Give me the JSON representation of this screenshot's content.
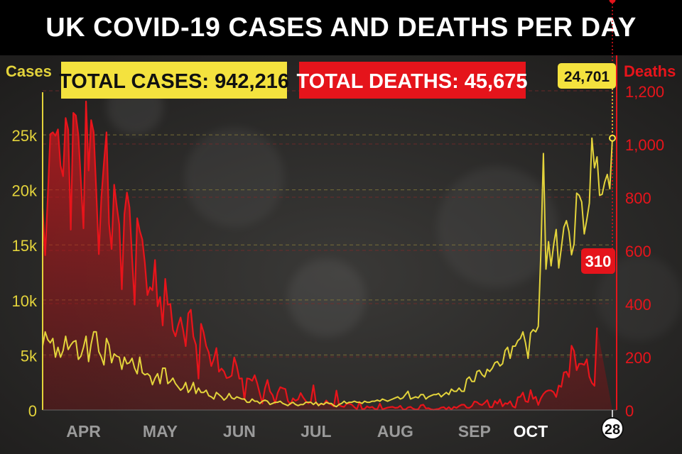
{
  "chart_data": {
    "type": "line",
    "title": "UK COVID-19 CASES AND DEATHS PER DAY",
    "left_axis_label": "Cases",
    "right_axis_label": "Deaths",
    "total_cases_label": "TOTAL CASES: 942,216",
    "total_deaths_label": "TOTAL DEATHS: 45,675",
    "cases_last_label": "24,701",
    "deaths_last_label": "310",
    "end_day_label": "28",
    "left_ticks": [
      {
        "value": 0,
        "label": "0"
      },
      {
        "value": 5000,
        "label": "5k"
      },
      {
        "value": 10000,
        "label": "10k"
      },
      {
        "value": 15000,
        "label": "15k"
      },
      {
        "value": 20000,
        "label": "20k"
      },
      {
        "value": 25000,
        "label": "25k"
      }
    ],
    "right_ticks": [
      {
        "value": 0,
        "label": "0"
      },
      {
        "value": 200,
        "label": "200"
      },
      {
        "value": 400,
        "label": "400"
      },
      {
        "value": 600,
        "label": "600"
      },
      {
        "value": 800,
        "label": "800"
      },
      {
        "value": 1000,
        "label": "1,000"
      },
      {
        "value": 1200,
        "label": "1,200"
      }
    ],
    "left_ylim": [
      0,
      29000
    ],
    "right_ylim": [
      0,
      1200
    ],
    "x_labels": [
      {
        "day": 16,
        "label": "APR"
      },
      {
        "day": 46,
        "label": "MAY"
      },
      {
        "day": 77,
        "label": "JUN"
      },
      {
        "day": 107,
        "label": "JUL"
      },
      {
        "day": 138,
        "label": "AUG"
      },
      {
        "day": 169,
        "label": "SEP"
      },
      {
        "day": 191,
        "label": "OCT",
        "highlight": true
      }
    ],
    "series": [
      {
        "name": "Cases",
        "color": "#e3d33b",
        "values": [
          5800,
          7100,
          6400,
          6100,
          6500,
          4800,
          5700,
          4800,
          5400,
          6700,
          5500,
          5900,
          6200,
          6300,
          4600,
          4900,
          5700,
          6700,
          4400,
          6000,
          7100,
          7100,
          5300,
          4800,
          4100,
          6500,
          5900,
          4300,
          5100,
          4900,
          4800,
          3700,
          4800,
          4200,
          4300,
          4700,
          3800,
          3300,
          4800,
          3400,
          3200,
          3300,
          3100,
          2300,
          2900,
          3300,
          2400,
          3800,
          3800,
          2400,
          2600,
          2900,
          2400,
          2100,
          1800,
          2000,
          2500,
          1600,
          1900,
          2500,
          1500,
          2000,
          1600,
          1600,
          1800,
          1300,
          1200,
          1000,
          1600,
          1400,
          1200,
          900,
          1100,
          1500,
          1100,
          1000,
          1200,
          1100,
          1000,
          1000,
          700,
          700,
          1000,
          800,
          800,
          600,
          800,
          900,
          800,
          500,
          600,
          700,
          700,
          800,
          600,
          500,
          400,
          600,
          700,
          500,
          400,
          500,
          500,
          700,
          700,
          700,
          500,
          700,
          400,
          600,
          500,
          700,
          600,
          600,
          400,
          300,
          500,
          600,
          800,
          600,
          700,
          700,
          800,
          700,
          700,
          600,
          800,
          700,
          700,
          800,
          800,
          900,
          800,
          1000,
          900,
          800,
          900,
          1000,
          1100,
          1200,
          1000,
          1100,
          1400,
          1700,
          1000,
          1100,
          1200,
          1100,
          1400,
          1400,
          1000,
          1200,
          1300,
          1400,
          1400,
          1500,
          1200,
          1400,
          1600,
          1400,
          1900,
          1700,
          1700,
          2000,
          1700,
          1700,
          2800,
          3000,
          2600,
          2600,
          3500,
          3600,
          3200,
          3000,
          3700,
          3500,
          3800,
          4300,
          4400,
          4000,
          4200,
          5400,
          5700,
          4700,
          5800,
          5800,
          6300,
          6500,
          7100,
          6100,
          4700,
          7000,
          7300,
          7100,
          7600,
          14200,
          23300,
          12800,
          15300,
          13100,
          15000,
          16400,
          12900,
          14700,
          16600,
          17200,
          16200,
          14100,
          15100,
          19700,
          19500,
          18900,
          16000,
          17300,
          18800,
          24700,
          22000,
          23000,
          19500,
          19600,
          20700,
          21400,
          20100,
          24701
        ]
      },
      {
        "name": "Deaths",
        "color": "#e8141b",
        "values": [
          757,
          582,
          797,
          1037,
          1044,
          1031,
          1055,
          919,
          879,
          1098,
          1054,
          678,
          1117,
          1107,
          1034,
          861,
          683,
          1160,
          900,
          1090,
          1044,
          823,
          586,
          800,
          930,
          1044,
          701,
          605,
          847,
          767,
          698,
          454,
          737,
          818,
          761,
          573,
          396,
          721,
          674,
          641,
          553,
          432,
          462,
          450,
          564,
          390,
          425,
          318,
          493,
          396,
          399,
          302,
          277,
          317,
          348,
          300,
          240,
          363,
          377,
          276,
          245,
          118,
          324,
          292,
          241,
          217,
          165,
          192,
          233,
          144,
          156,
          145,
          120,
          123,
          129,
          198,
          165,
          118,
          119,
          39,
          119,
          117,
          110,
          131,
          100,
          62,
          25,
          81,
          113,
          70,
          56,
          25,
          65,
          86,
          82,
          79,
          34,
          22,
          44,
          35,
          40,
          64,
          47,
          34,
          25,
          33,
          93,
          27,
          21,
          23,
          21,
          36,
          25,
          20,
          14,
          73,
          19,
          14,
          12,
          24,
          24,
          20,
          11,
          3,
          31,
          4,
          4,
          14,
          9,
          12,
          4,
          3,
          24,
          3,
          6,
          9,
          11,
          12,
          8,
          9,
          16,
          3,
          2,
          10,
          12,
          5,
          2,
          3,
          18,
          20,
          6,
          7,
          3,
          1,
          3,
          4,
          9,
          11,
          3,
          11,
          2,
          12,
          8,
          15,
          20,
          20,
          9,
          8,
          15,
          32,
          30,
          22,
          19,
          27,
          37,
          11,
          11,
          34,
          24,
          40,
          14,
          26,
          23,
          33,
          14,
          9,
          48,
          50,
          66,
          33,
          30,
          75,
          42,
          50,
          19,
          44,
          60,
          70,
          74,
          74,
          67,
          49,
          92,
          87,
          141,
          144,
          124,
          242,
          222,
          150,
          174,
          174,
          170,
          191,
          125,
          102,
          91,
          310
        ]
      }
    ]
  }
}
